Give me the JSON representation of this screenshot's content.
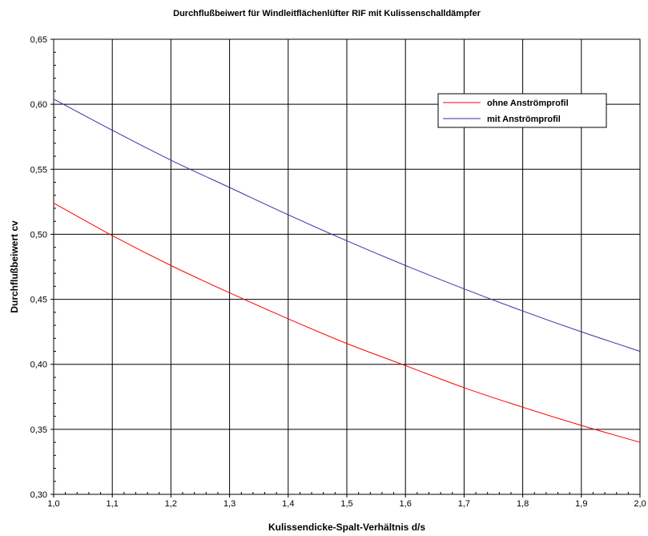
{
  "chart_data": {
    "type": "line",
    "title": "Durchflußbeiwert für Windleitflächenlüfter RIF mit Kulissenschalldämpfer",
    "xlabel": "Kulissendicke-Spalt-Verhältnis d/s",
    "ylabel": "Durchflußbeiwert cv",
    "xlim": [
      1.0,
      2.0
    ],
    "ylim": [
      0.3,
      0.65
    ],
    "xticks": [
      "1,0",
      "1,1",
      "1,2",
      "1,3",
      "1,4",
      "1,5",
      "1,6",
      "1,7",
      "1,8",
      "1,9",
      "2,0"
    ],
    "yticks": [
      "0,30",
      "0,35",
      "0,40",
      "0,45",
      "0,50",
      "0,55",
      "0,60",
      "0,65"
    ],
    "grid": true,
    "legend_position": "top-right",
    "x": [
      1.0,
      1.1,
      1.2,
      1.3,
      1.4,
      1.5,
      1.6,
      1.7,
      1.8,
      1.9,
      2.0
    ],
    "series": [
      {
        "name": "ohne Anströmprofil",
        "color": "#ff0000",
        "values": [
          0.524,
          0.499,
          0.476,
          0.455,
          0.435,
          0.416,
          0.399,
          0.382,
          0.367,
          0.353,
          0.34
        ]
      },
      {
        "name": "mit Anströmprofil",
        "color": "#3333aa",
        "values": [
          0.604,
          0.58,
          0.557,
          0.536,
          0.515,
          0.495,
          0.476,
          0.458,
          0.441,
          0.425,
          0.41
        ]
      }
    ]
  }
}
